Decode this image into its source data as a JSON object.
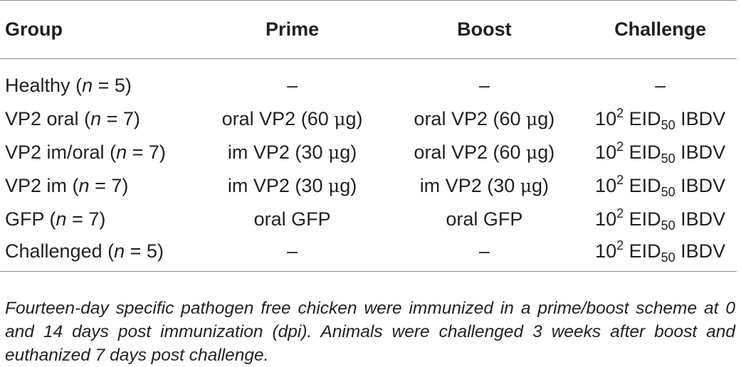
{
  "table": {
    "headers": {
      "group": "Group",
      "prime": "Prime",
      "boost": "Boost",
      "challenge": "Challenge"
    },
    "rows": [
      {
        "group_name": "Healthy",
        "group_open": "(",
        "n_var": "n",
        "n_eq": " = 5)",
        "prime": "–",
        "boost": "–",
        "challenge": {
          "dash": "–"
        }
      },
      {
        "group_name": "VP2 oral",
        "group_open": "(",
        "n_var": "n",
        "n_eq": " = 7)",
        "prime": {
          "text": "oral VP2 (60 ",
          "mu": "μ",
          "unit": "g)"
        },
        "boost": {
          "text": "oral VP2 (60 ",
          "mu": "μ",
          "unit": "g)"
        },
        "challenge": {
          "base": "10",
          "exp": "2",
          "mid": " EID",
          "sub": "50",
          "tail": " IBDV"
        }
      },
      {
        "group_name": "VP2 im/oral",
        "group_open": "(",
        "n_var": "n",
        "n_eq": " = 7)",
        "prime": {
          "text": "im VP2 (30 ",
          "mu": "μ",
          "unit": "g)"
        },
        "boost": {
          "text": "oral VP2 (60 ",
          "mu": "μ",
          "unit": "g)"
        },
        "challenge": {
          "base": "10",
          "exp": "2",
          "mid": " EID",
          "sub": "50",
          "tail": " IBDV"
        }
      },
      {
        "group_name": "VP2 im",
        "group_open": "(",
        "n_var": "n",
        "n_eq": " = 7)",
        "prime": {
          "text": "im VP2 (30 ",
          "mu": "μ",
          "unit": "g)"
        },
        "boost": {
          "text": "im VP2 (30 ",
          "mu": "μ",
          "unit": "g)"
        },
        "challenge": {
          "base": "10",
          "exp": "2",
          "mid": " EID",
          "sub": "50",
          "tail": " IBDV"
        }
      },
      {
        "group_name": "GFP",
        "group_open": "(",
        "n_var": "n",
        "n_eq": " = 7)",
        "prime": "oral GFP",
        "boost": "oral GFP",
        "challenge": {
          "base": "10",
          "exp": "2",
          "mid": " EID",
          "sub": "50",
          "tail": " IBDV"
        }
      },
      {
        "group_name": "Challenged",
        "group_open": "(",
        "n_var": "n",
        "n_eq": " = 5)",
        "prime": "–",
        "boost": "–",
        "challenge": {
          "base": "10",
          "exp": "2",
          "mid": " EID",
          "sub": "50",
          "tail": " IBDV"
        }
      }
    ]
  },
  "footnote": "Fourteen-day specific pathogen free chicken were immunized in a prime/boost scheme at 0 and 14 days post immunization (dpi). Animals were challenged 3 weeks after boost and euthanized 7 days post challenge."
}
